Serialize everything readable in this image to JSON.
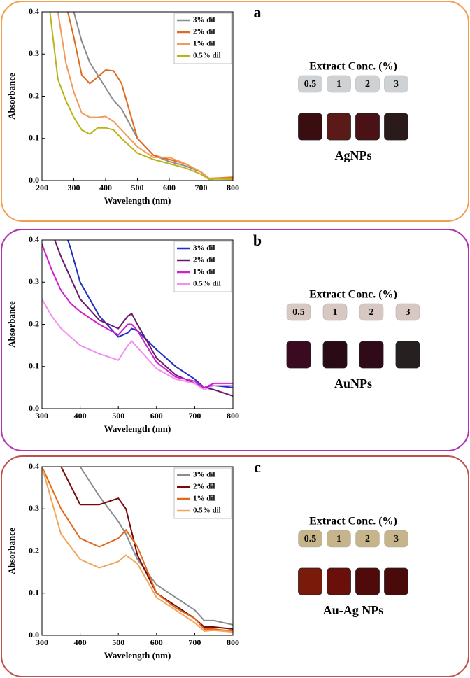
{
  "chart_data": [
    {
      "type": "line",
      "panel_label": "a",
      "frame_color": "#f0a050",
      "xlabel": "Wavelength (nm)",
      "ylabel": "Absorbance",
      "x": [
        225,
        250,
        275,
        300,
        325,
        350,
        375,
        400,
        425,
        450,
        500,
        550,
        600,
        650,
        700,
        725,
        750,
        800
      ],
      "series": [
        {
          "name": "3% dil",
          "color": "#8c8c8c",
          "values": [
            null,
            null,
            null,
            0.4,
            0.33,
            0.28,
            0.25,
            0.22,
            0.19,
            0.17,
            0.1,
            0.06,
            0.045,
            0.035,
            0.02,
            0.005,
            0.005,
            0.005
          ]
        },
        {
          "name": "2% dil",
          "color": "#e06a1e",
          "values": [
            null,
            null,
            0.42,
            0.34,
            0.25,
            0.23,
            0.245,
            0.262,
            0.26,
            0.23,
            0.1,
            0.06,
            0.05,
            0.04,
            0.02,
            0.005,
            0.006,
            0.008
          ]
        },
        {
          "name": "1% dil",
          "color": "#f29a5a",
          "values": [
            null,
            0.4,
            0.28,
            0.21,
            0.16,
            0.15,
            0.15,
            0.152,
            0.14,
            0.12,
            0.08,
            0.055,
            0.055,
            0.04,
            0.02,
            0.005,
            0.006,
            0.005
          ]
        },
        {
          "name": "0.5% dil",
          "color": "#b8b418",
          "values": [
            0.4,
            0.24,
            0.19,
            0.15,
            0.12,
            0.11,
            0.125,
            0.125,
            0.12,
            0.1,
            0.065,
            0.05,
            0.04,
            0.03,
            0.015,
            0.003,
            0.004,
            0.003
          ]
        }
      ],
      "xlim": [
        200,
        800
      ],
      "xticks": [
        200,
        300,
        400,
        500,
        600,
        700,
        800
      ],
      "ylim": [
        0,
        0.4
      ],
      "yticks": [
        {
          "value": 0,
          "label": "0.0"
        },
        0.1,
        0.2,
        0.3,
        0.4
      ],
      "legend": "upper right",
      "photo_title": "Extract Conc. (%)",
      "photo_labels": [
        "0.5",
        "1",
        "2",
        "3"
      ],
      "photo_caption": "AgNPs"
    },
    {
      "type": "line",
      "panel_label": "b",
      "frame_color": "#b030b0",
      "xlabel": "Wavelength (nm)",
      "ylabel": "Absorbance",
      "x": [
        300,
        325,
        350,
        375,
        400,
        450,
        500,
        525,
        535,
        550,
        600,
        650,
        700,
        725,
        750,
        800
      ],
      "series": [
        {
          "name": "3% dil",
          "color": "#1f2fbf",
          "values": [
            null,
            null,
            0.45,
            0.38,
            0.3,
            0.22,
            0.17,
            0.18,
            0.19,
            0.185,
            0.14,
            0.1,
            0.07,
            0.05,
            0.055,
            0.05
          ]
        },
        {
          "name": "2% dil",
          "color": "#6a1a6a",
          "values": [
            null,
            0.42,
            0.36,
            0.31,
            0.26,
            0.21,
            0.19,
            0.22,
            0.225,
            0.2,
            0.12,
            0.08,
            0.06,
            0.05,
            0.045,
            0.03
          ]
        },
        {
          "name": "1% dil",
          "color": "#d020d0",
          "values": [
            0.39,
            0.33,
            0.28,
            0.25,
            0.23,
            0.2,
            0.175,
            0.2,
            0.2,
            0.185,
            0.11,
            0.075,
            0.065,
            0.05,
            0.06,
            0.06
          ]
        },
        {
          "name": "0.5% dil",
          "color": "#f090f0",
          "values": [
            0.26,
            0.22,
            0.19,
            0.17,
            0.15,
            0.13,
            0.115,
            0.15,
            0.16,
            0.145,
            0.095,
            0.07,
            0.06,
            0.045,
            0.055,
            0.055
          ]
        }
      ],
      "xlim": [
        300,
        800
      ],
      "xticks": [
        300,
        400,
        500,
        600,
        700,
        800
      ],
      "ylim": [
        0,
        0.4
      ],
      "yticks": [
        {
          "value": 0,
          "label": "0.0"
        },
        0.1,
        0.2,
        0.3,
        0.4
      ],
      "legend": "upper right",
      "photo_title": "Extract Conc. (%)",
      "photo_labels": [
        "0.5",
        "1",
        "2",
        "3"
      ],
      "photo_caption": "AuNPs"
    },
    {
      "type": "line",
      "panel_label": "c",
      "frame_color": "#c05050",
      "xlabel": "Wavelength (nm)",
      "ylabel": "Absorbance",
      "x": [
        300,
        350,
        400,
        450,
        500,
        520,
        550,
        600,
        650,
        700,
        725,
        750,
        800
      ],
      "series": [
        {
          "name": "3% dil",
          "color": "#8c8c8c",
          "values": [
            null,
            null,
            0.4,
            0.33,
            0.27,
            0.24,
            0.18,
            0.12,
            0.09,
            0.06,
            0.035,
            0.035,
            0.025
          ]
        },
        {
          "name": "2% dil",
          "color": "#7a0a0a",
          "values": [
            null,
            0.4,
            0.31,
            0.31,
            0.325,
            0.3,
            0.19,
            0.1,
            0.07,
            0.04,
            0.02,
            0.02,
            0.015
          ]
        },
        {
          "name": "1% dil",
          "color": "#e06a1e",
          "values": [
            0.4,
            0.3,
            0.23,
            0.21,
            0.23,
            0.25,
            0.21,
            0.1,
            0.065,
            0.04,
            0.015,
            0.015,
            0.01
          ]
        },
        {
          "name": "0.5% dil",
          "color": "#f2a65a",
          "values": [
            0.4,
            0.24,
            0.18,
            0.16,
            0.175,
            0.19,
            0.17,
            0.09,
            0.06,
            0.03,
            0.01,
            0.012,
            0.008
          ]
        }
      ],
      "xlim": [
        300,
        800
      ],
      "xticks": [
        300,
        400,
        500,
        600,
        700,
        800
      ],
      "ylim": [
        0,
        0.4
      ],
      "yticks": [
        {
          "value": 0,
          "label": "0.0"
        },
        0.1,
        0.2,
        0.3,
        0.4
      ],
      "legend": "upper right",
      "photo_title": "Extract Conc. (%)",
      "photo_labels": [
        "0.5",
        "1",
        "2",
        "3"
      ],
      "photo_caption": "Au-Ag NPs"
    }
  ]
}
